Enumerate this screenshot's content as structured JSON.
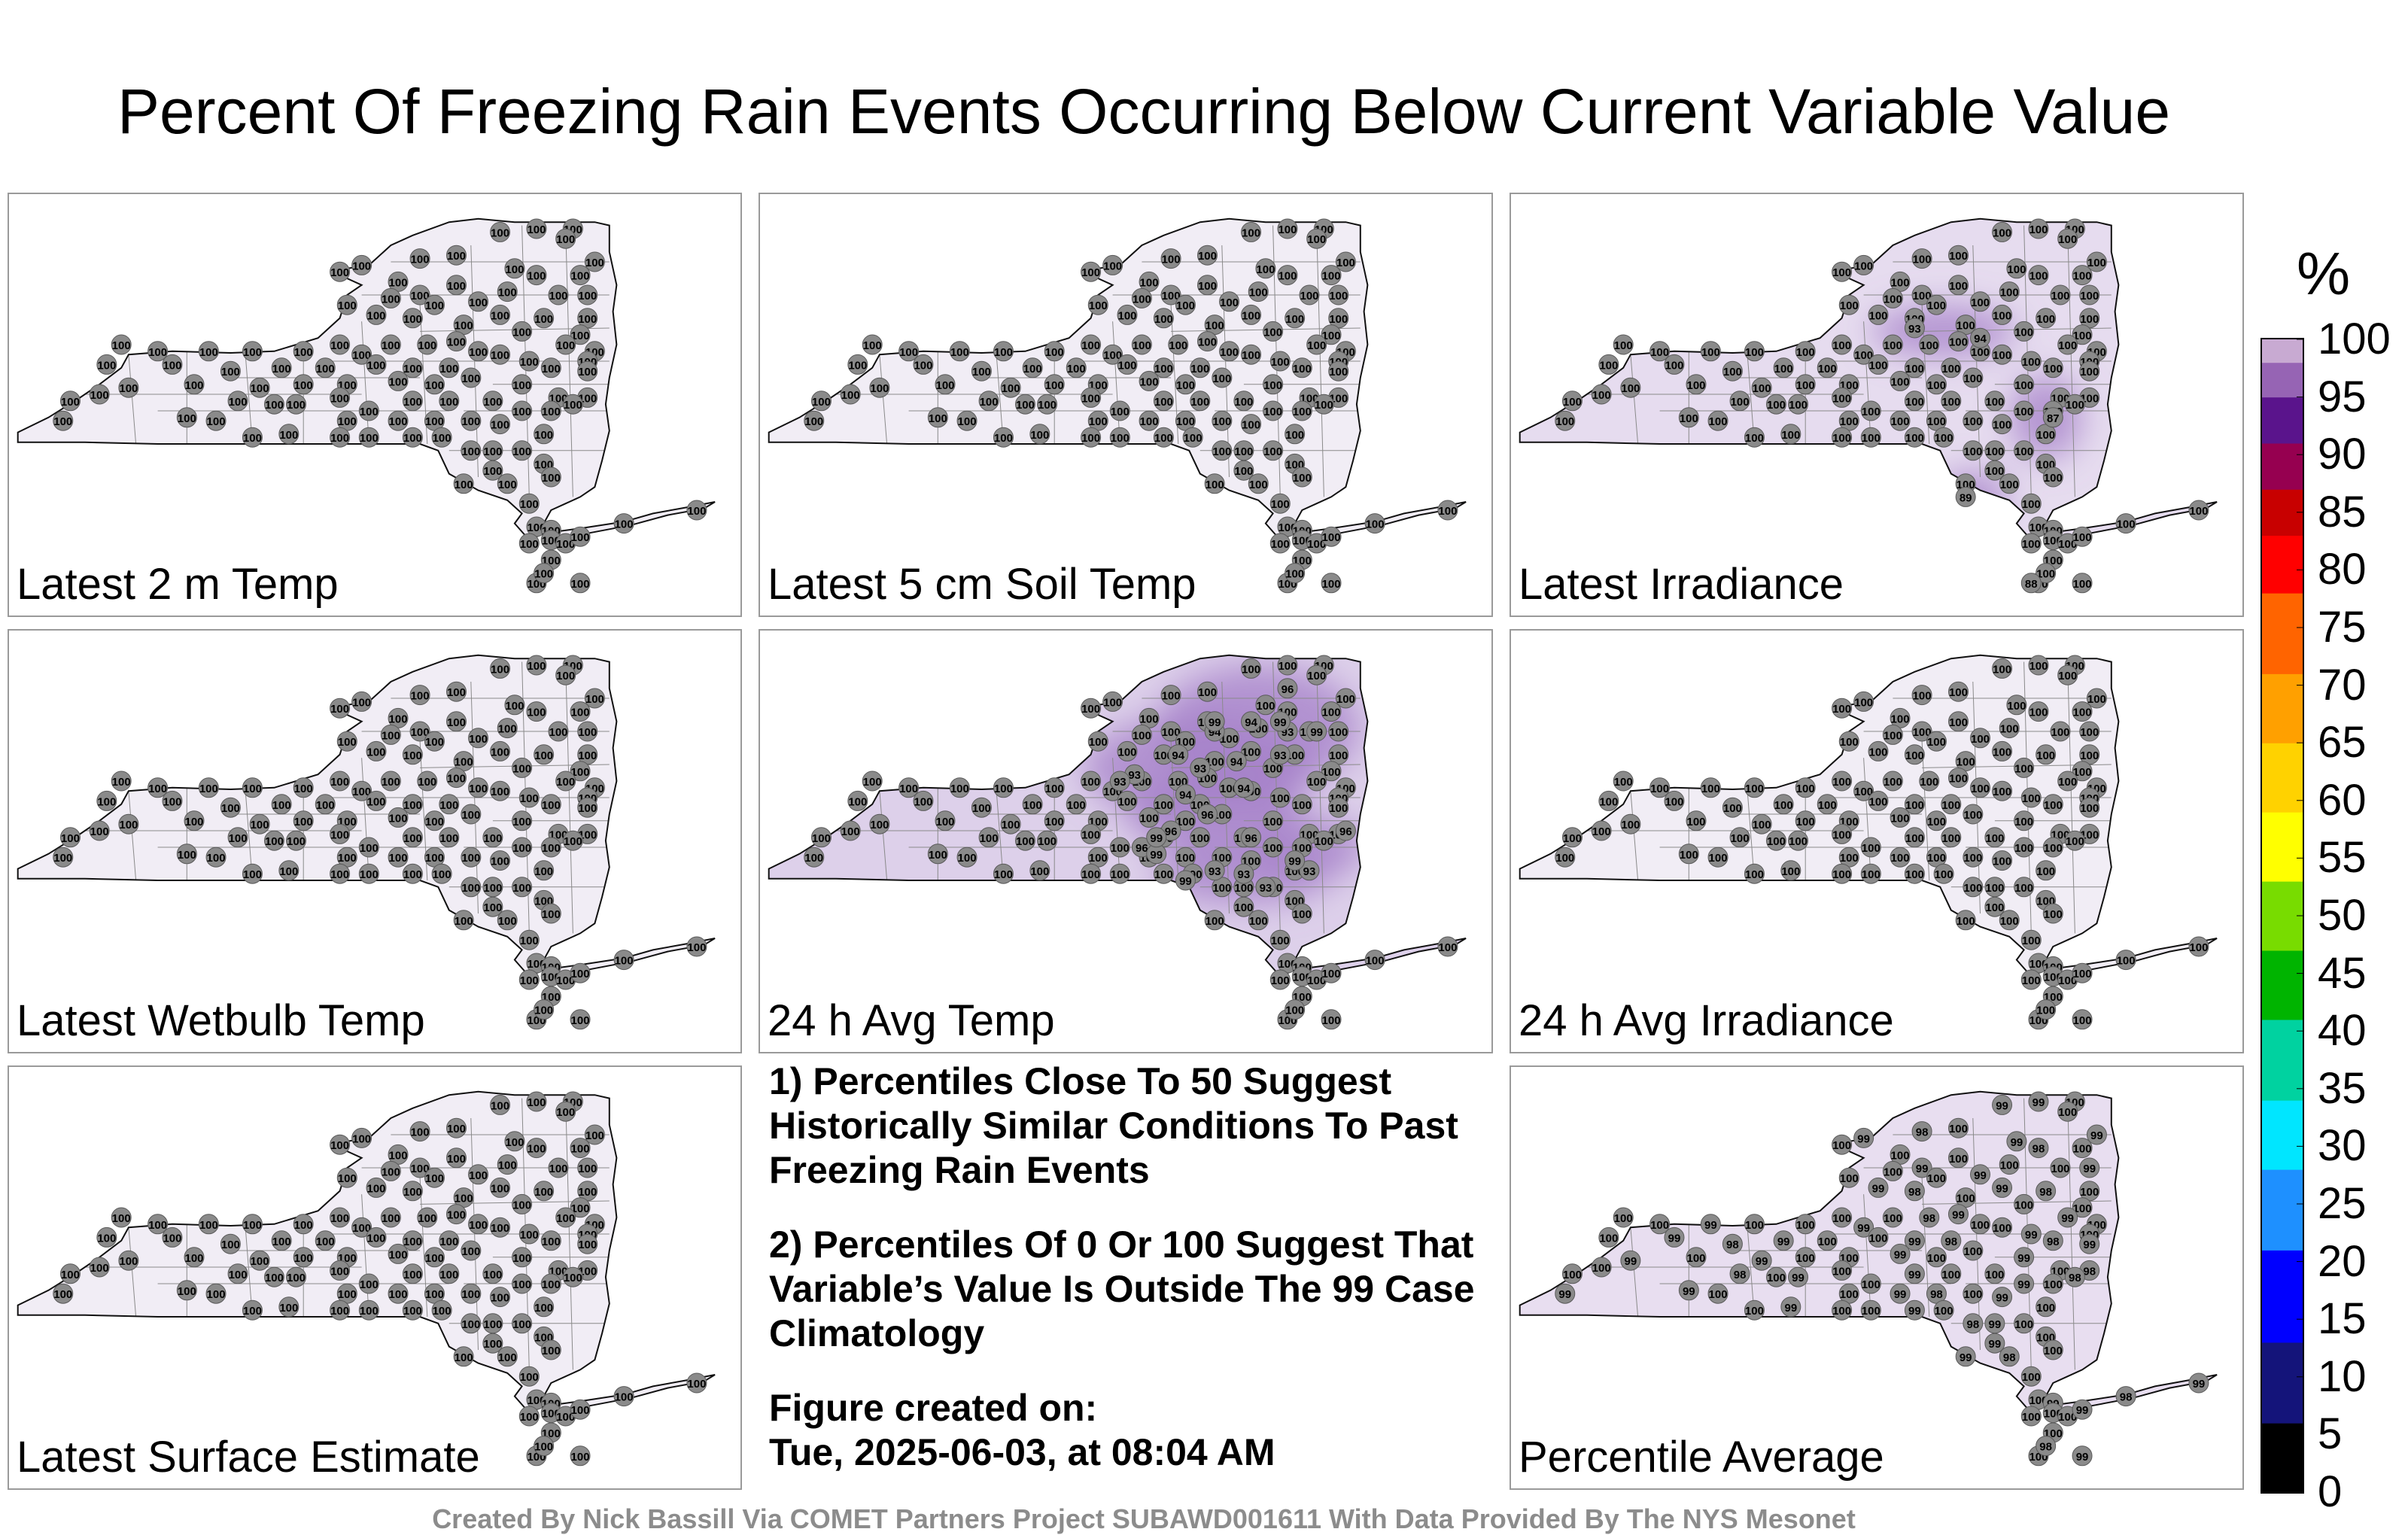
{
  "title": "Percent Of Freezing Rain Events Occurring Below Current Variable Value",
  "colorbar": {
    "unit": "%",
    "ticks": [
      "100",
      "95",
      "90",
      "85",
      "80",
      "75",
      "70",
      "65",
      "60",
      "55",
      "50",
      "45",
      "40",
      "35",
      "30",
      "25",
      "20",
      "15",
      "10",
      "5",
      "0"
    ],
    "stops": [
      {
        "value": 0,
        "color": "#000000"
      },
      {
        "value": 5,
        "color": "#14147a"
      },
      {
        "value": 12,
        "color": "#0000ff"
      },
      {
        "value": 20,
        "color": "#1e90ff"
      },
      {
        "value": 27,
        "color": "#00e6ff"
      },
      {
        "value": 33,
        "color": "#00d2a0"
      },
      {
        "value": 40,
        "color": "#00b400"
      },
      {
        "value": 46,
        "color": "#78dc00"
      },
      {
        "value": 52,
        "color": "#ffff00"
      },
      {
        "value": 58,
        "color": "#ffd200"
      },
      {
        "value": 64,
        "color": "#ffa000"
      },
      {
        "value": 70,
        "color": "#ff6400"
      },
      {
        "value": 77,
        "color": "#ff0000"
      },
      {
        "value": 82,
        "color": "#c80000"
      },
      {
        "value": 86,
        "color": "#960050"
      },
      {
        "value": 90,
        "color": "#5a148c"
      },
      {
        "value": 94,
        "color": "#9664b4"
      },
      {
        "value": 97,
        "color": "#c8aad2"
      },
      {
        "value": 100,
        "color": "#f2eef6"
      }
    ]
  },
  "panels": [
    {
      "label": "Latest 2 m Temp",
      "fill": "#f1edf5",
      "mode": "all100",
      "blobs": []
    },
    {
      "label": "Latest 5 cm Soil Temp",
      "fill": "#f1edf5",
      "mode": "all100",
      "blobs": []
    },
    {
      "label": "Latest Irradiance",
      "fill": "#e6dcef",
      "mode": "mixed",
      "special": [
        [
          0.55,
          0.35,
          "93"
        ],
        [
          0.64,
          0.38,
          "94"
        ],
        [
          0.74,
          0.62,
          "87"
        ],
        [
          0.62,
          0.86,
          "89"
        ],
        [
          0.71,
          1.12,
          "88"
        ]
      ],
      "blobs": [
        [
          0.59,
          0.36,
          0.1,
          0.05
        ],
        [
          0.73,
          0.62,
          0.05,
          0.08
        ],
        [
          0.63,
          0.86,
          0.05,
          0.05
        ]
      ]
    },
    {
      "label": "Latest Wetbulb Temp",
      "fill": "#f1edf5",
      "mode": "all100",
      "blobs": []
    },
    {
      "label": "24 h Avg Temp",
      "fill": "#ddd0ea",
      "mode": "mixed",
      "special": [
        [
          0.72,
          0.12,
          "96"
        ],
        [
          0.67,
          0.22,
          "94"
        ],
        [
          0.62,
          0.25,
          "94"
        ],
        [
          0.72,
          0.25,
          "93"
        ],
        [
          0.57,
          0.32,
          "94"
        ],
        [
          0.65,
          0.34,
          "94"
        ],
        [
          0.6,
          0.36,
          "93"
        ],
        [
          0.71,
          0.32,
          "93"
        ],
        [
          0.51,
          0.38,
          "93"
        ],
        [
          0.49,
          0.4,
          "93"
        ],
        [
          0.66,
          0.42,
          "94"
        ],
        [
          0.58,
          0.44,
          "94"
        ],
        [
          0.61,
          0.5,
          "96"
        ],
        [
          0.56,
          0.55,
          "96"
        ],
        [
          0.52,
          0.6,
          "96"
        ],
        [
          0.67,
          0.57,
          "96"
        ],
        [
          0.75,
          0.67,
          "93"
        ],
        [
          0.62,
          0.67,
          "93"
        ],
        [
          0.66,
          0.68,
          "93"
        ],
        [
          0.69,
          0.72,
          "93"
        ],
        [
          0.54,
          0.62,
          "99"
        ],
        [
          0.73,
          0.64,
          "99"
        ],
        [
          0.62,
          0.22,
          "99"
        ],
        [
          0.54,
          0.57,
          "99"
        ],
        [
          0.58,
          0.7,
          "99"
        ],
        [
          0.71,
          0.22,
          "99"
        ],
        [
          0.76,
          0.25,
          "99"
        ],
        [
          0.8,
          0.55,
          "96"
        ]
      ],
      "blobs": [
        [
          0.68,
          0.24,
          0.14,
          0.12
        ],
        [
          0.6,
          0.36,
          0.16,
          0.1
        ],
        [
          0.62,
          0.5,
          0.12,
          0.08
        ],
        [
          0.66,
          0.68,
          0.12,
          0.06
        ],
        [
          0.75,
          0.6,
          0.08,
          0.06
        ]
      ]
    },
    {
      "label": "24 h Avg Irradiance",
      "fill": "#f1edf5",
      "mode": "all100",
      "blobs": []
    },
    {
      "label": "Latest Surface Estimate",
      "fill": "#f1edf5",
      "mode": "all100",
      "blobs": []
    },
    {
      "label": "Percentile Average",
      "fill": "#e8def0",
      "mode": "avg",
      "blobs": []
    }
  ],
  "notes": [
    "1) Percentiles Close To 50 Suggest Historically Similar Conditions To Past Freezing Rain Events",
    "2) Percentiles Of 0 Or 100 Suggest That Variable’s Value Is Outside The 99 Case Climatology",
    "Figure created on:",
    "Tue, 2025-06-03, at 08:04 AM"
  ],
  "station_default": "100",
  "credit": "Created By Nick Bassill Via COMET Partners Project SUBAWD001611 With Data Provided By The NYS Mesonet"
}
